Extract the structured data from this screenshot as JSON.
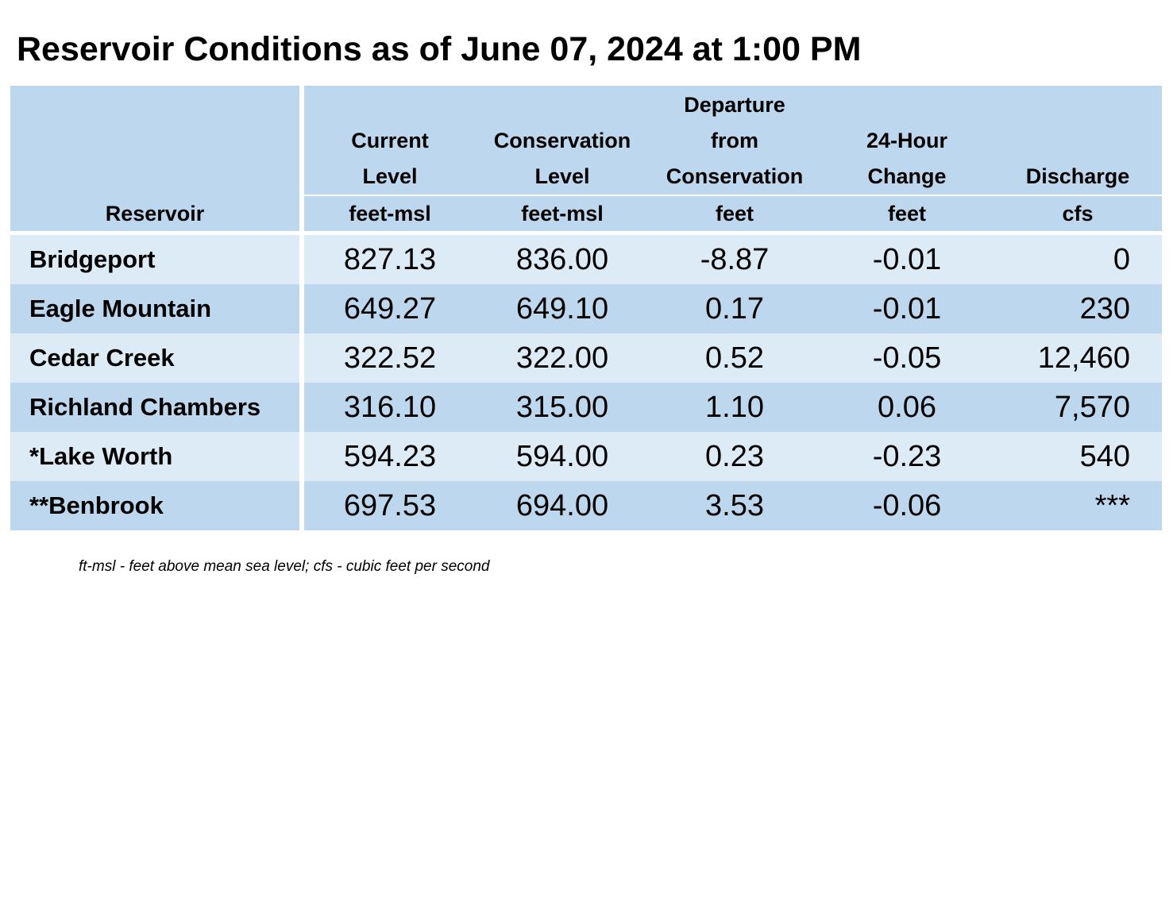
{
  "title": "Reservoir Conditions as of June 07, 2024 at 1:00 PM",
  "columns": {
    "reservoir": {
      "label": "Reservoir"
    },
    "current": {
      "lines": [
        "Current",
        "Level"
      ],
      "unit": "feet-msl"
    },
    "conservation": {
      "lines": [
        "Conservation",
        "Level"
      ],
      "unit": "feet-msl"
    },
    "departure": {
      "lines": [
        "Departure",
        "from",
        "Conservation"
      ],
      "unit": "feet"
    },
    "change": {
      "lines": [
        "24-Hour",
        "Change"
      ],
      "unit": "feet"
    },
    "discharge": {
      "lines": [
        "Discharge"
      ],
      "unit": "cfs"
    }
  },
  "rows": [
    {
      "name": "Bridgeport",
      "current": "827.13",
      "conservation": "836.00",
      "departure": "-8.87",
      "change": "-0.01",
      "discharge": "0"
    },
    {
      "name": "Eagle Mountain",
      "current": "649.27",
      "conservation": "649.10",
      "departure": "0.17",
      "change": "-0.01",
      "discharge": "230"
    },
    {
      "name": "Cedar Creek",
      "current": "322.52",
      "conservation": "322.00",
      "departure": "0.52",
      "change": "-0.05",
      "discharge": "12,460"
    },
    {
      "name": "Richland Chambers",
      "current": "316.10",
      "conservation": "315.00",
      "departure": "1.10",
      "change": "0.06",
      "discharge": "7,570"
    },
    {
      "name": "*Lake Worth",
      "current": "594.23",
      "conservation": "594.00",
      "departure": "0.23",
      "change": "-0.23",
      "discharge": "540"
    },
    {
      "name": "**Benbrook",
      "current": "697.53",
      "conservation": "694.00",
      "departure": "3.53",
      "change": "-0.06",
      "discharge": "***"
    }
  ],
  "footnote": "ft-msl - feet above mean sea level; cfs - cubic feet per second",
  "colors": {
    "header_bg": "#bdd7ee",
    "row_light": "#ddebf7",
    "row_dark": "#bdd7ee",
    "separator": "#ffffff"
  }
}
